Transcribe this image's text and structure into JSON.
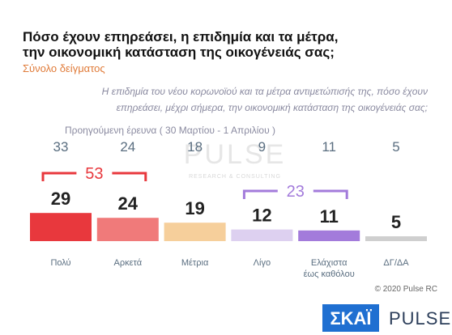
{
  "chart_data": {
    "type": "bar",
    "title": [
      "Πόσο έχουν επηρεάσει, η επιδημία και τα μέτρα,",
      "την οικονομική κατάσταση της οικογένειάς σας;"
    ],
    "subtitle": "Σύνολο δείγματος",
    "question": [
      "Η επιδημία του νέου κορωνοϊού και τα μέτρα αντιμετώπισής της, πόσο έχουν",
      "επηρεάσει, μέχρι σήμερα, την οικονομική κατάσταση της οικογένειάς σας;"
    ],
    "previous_label": "Προηγούμενη έρευνα  ( 30 Μαρτίου - 1 Απριλίου )",
    "categories": [
      "Πολύ",
      "Αρκετά",
      "Μέτρια",
      "Λίγο",
      "Ελάχιστα έως καθόλου",
      "ΔΓ/ΔΑ"
    ],
    "previous_values": [
      33,
      24,
      18,
      9,
      11,
      5
    ],
    "values": [
      29,
      24,
      19,
      12,
      11,
      5
    ],
    "colors": [
      "#e8383d",
      "#f07a7a",
      "#f6cf9b",
      "#ddd0f0",
      "#a37bdb",
      "#cfcfcf"
    ],
    "groups": [
      {
        "value": 53,
        "categories": [
          "Πολύ",
          "Αρκετά"
        ],
        "color": "#e8383d"
      },
      {
        "value": 23,
        "categories": [
          "Λίγο",
          "Ελάχιστα έως καθόλου"
        ],
        "color": "#a37bdb"
      }
    ],
    "watermark": [
      "PULSE",
      "RESEARCH & CONSULTING"
    ],
    "copyright": "© 2020 Pulse RC",
    "logos": [
      "ΣΚΑΪ",
      "PULSE"
    ]
  }
}
